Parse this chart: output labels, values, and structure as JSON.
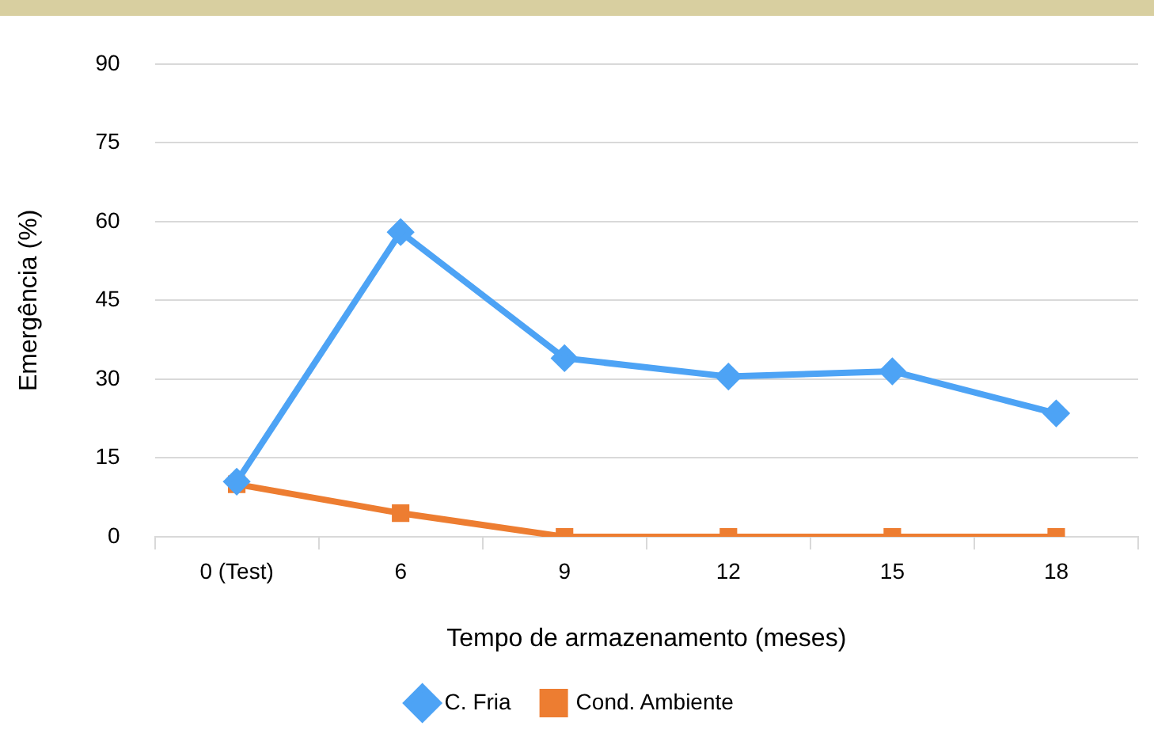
{
  "chart_data": {
    "type": "line",
    "xlabel": "Tempo de armazenamento (meses)",
    "ylabel": "Emergência (%)",
    "categories": [
      "0 (Test)",
      "6",
      "9",
      "12",
      "15",
      "18"
    ],
    "series": [
      {
        "name": "Cond. Ambiente",
        "color": "#ed7d31",
        "marker": "square",
        "values": [
          10,
          4.5,
          0,
          0,
          0,
          0
        ]
      },
      {
        "name": "C. Fria",
        "color": "#4da3f5",
        "marker": "diamond",
        "values": [
          10.5,
          58,
          34,
          30.5,
          31.5,
          23.5
        ]
      }
    ],
    "ylim": [
      0,
      90
    ],
    "yticks": [
      0,
      15,
      30,
      45,
      60,
      75,
      90
    ],
    "grid": "y",
    "legend": "bottom",
    "line_style": "solid"
  }
}
